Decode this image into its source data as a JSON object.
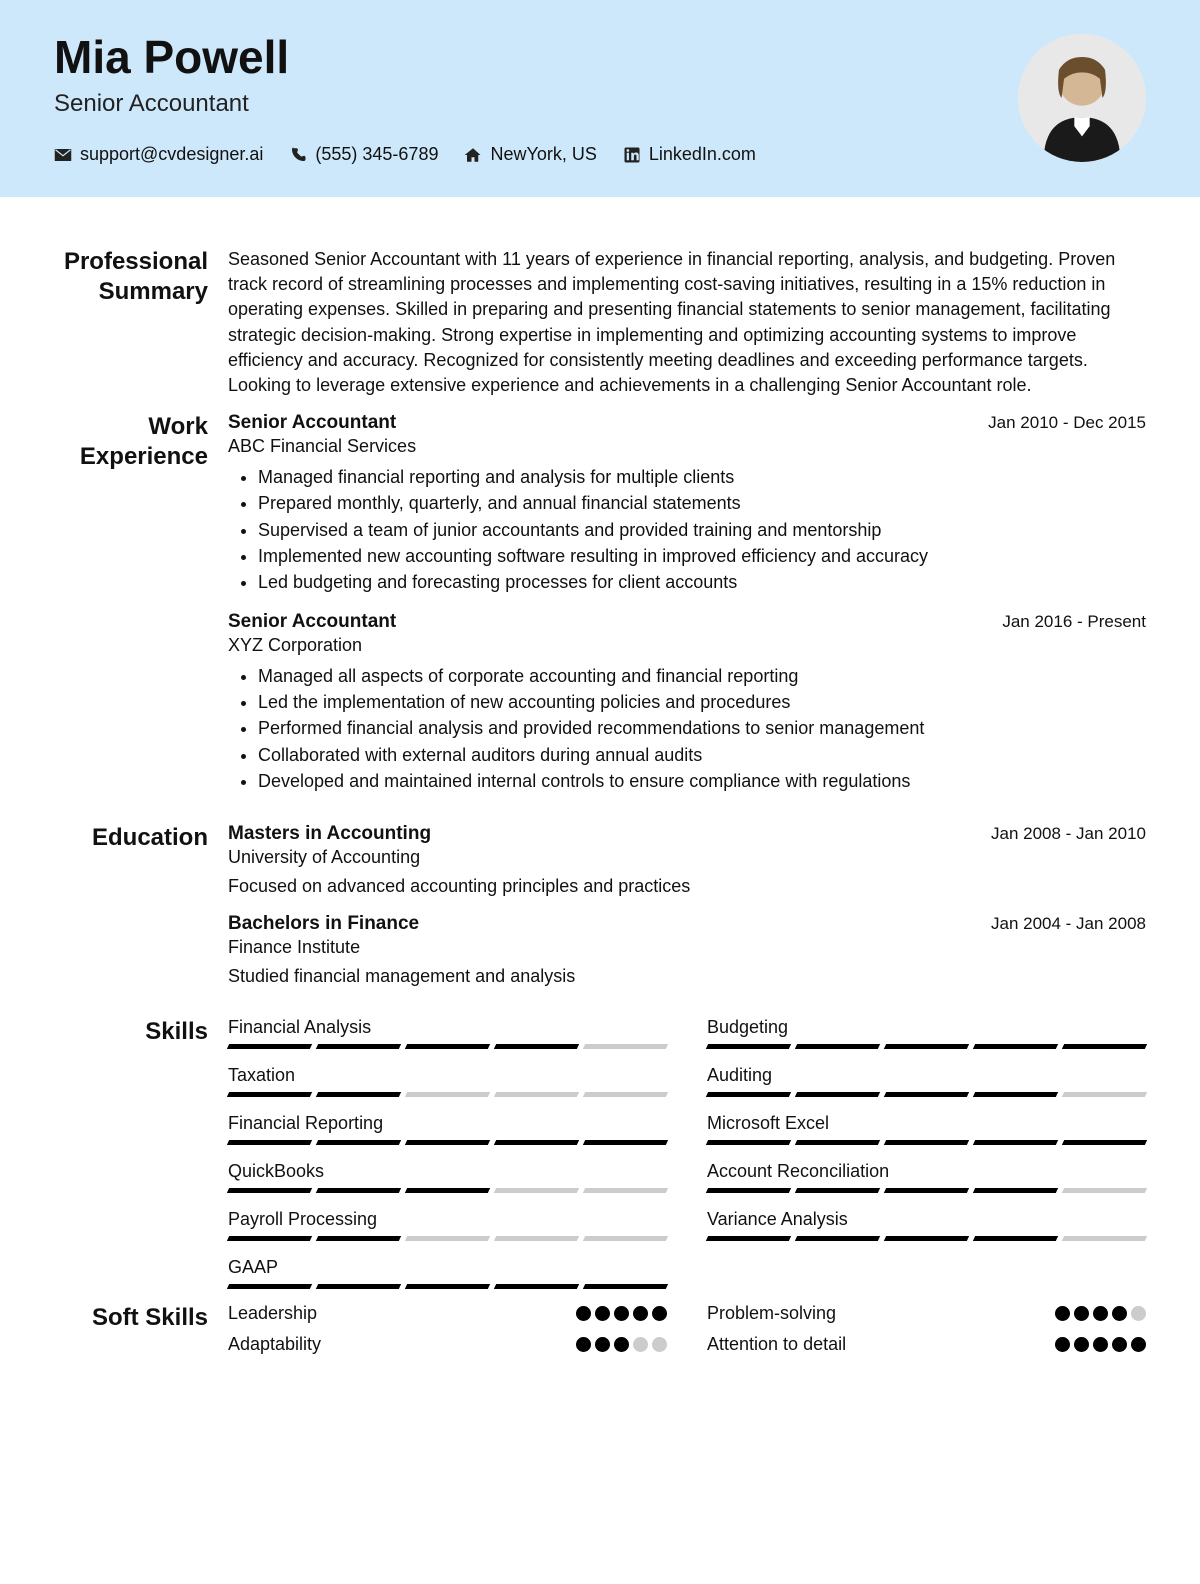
{
  "colors": {
    "header_bg": "#cee8fb",
    "text": "#111111",
    "skill_filled": "#000000",
    "skill_empty": "#cccccc",
    "dot_filled": "#000000",
    "dot_empty": "#cccccc"
  },
  "header": {
    "name": "Mia Powell",
    "title": "Senior Accountant",
    "contacts": [
      {
        "icon": "mail",
        "text": "support@cvdesigner.ai"
      },
      {
        "icon": "phone",
        "text": "(555) 345-6789"
      },
      {
        "icon": "home",
        "text": "NewYork, US"
      },
      {
        "icon": "linkedin",
        "text": "LinkedIn.com"
      }
    ]
  },
  "sections": {
    "summary": {
      "label": "Professional Summary"
    },
    "experience": {
      "label": "Work Experience"
    },
    "education": {
      "label": "Education"
    },
    "skills": {
      "label": "Skills"
    },
    "softskills": {
      "label": "Soft Skills"
    }
  },
  "summary_text": "Seasoned Senior Accountant with 11 years of experience in financial reporting, analysis, and budgeting. Proven track record of streamlining processes and implementing cost-saving initiatives, resulting in a 15% reduction in operating expenses. Skilled in preparing and presenting financial statements to senior management, facilitating strategic decision-making. Strong expertise in implementing and optimizing accounting systems to improve efficiency and accuracy. Recognized for consistently meeting deadlines and exceeding performance targets. Looking to leverage extensive experience and achievements in a challenging Senior Accountant role.",
  "experience": [
    {
      "title": "Senior Accountant",
      "company": "ABC Financial Services",
      "dates": "Jan 2010 - Dec 2015",
      "bullets": [
        "Managed financial reporting and analysis for multiple clients",
        "Prepared monthly, quarterly, and annual financial statements",
        "Supervised a team of junior accountants and provided training and mentorship",
        "Implemented new accounting software resulting in improved efficiency and accuracy",
        "Led budgeting and forecasting processes for client accounts"
      ]
    },
    {
      "title": "Senior Accountant",
      "company": "XYZ Corporation",
      "dates": "Jan 2016 - Present",
      "bullets": [
        "Managed all aspects of corporate accounting and financial reporting",
        "Led the implementation of new accounting policies and procedures",
        "Performed financial analysis and provided recommendations to senior management",
        "Collaborated with external auditors during annual audits",
        "Developed and maintained internal controls to ensure compliance with regulations"
      ]
    }
  ],
  "education": [
    {
      "degree": "Masters in Accounting",
      "school": "University of Accounting",
      "dates": "Jan 2008 - Jan 2010",
      "desc": "Focused on advanced accounting principles and practices"
    },
    {
      "degree": "Bachelors in Finance",
      "school": "Finance Institute",
      "dates": "Jan 2004 - Jan 2008",
      "desc": "Studied financial management and analysis"
    }
  ],
  "skills": [
    {
      "name": "Financial Analysis",
      "level": 4
    },
    {
      "name": "Budgeting",
      "level": 5
    },
    {
      "name": "Taxation",
      "level": 2
    },
    {
      "name": "Auditing",
      "level": 4
    },
    {
      "name": "Financial Reporting",
      "level": 5
    },
    {
      "name": "Microsoft Excel",
      "level": 5
    },
    {
      "name": "QuickBooks",
      "level": 3
    },
    {
      "name": "Account Reconciliation",
      "level": 4
    },
    {
      "name": "Payroll Processing",
      "level": 2
    },
    {
      "name": "Variance Analysis",
      "level": 4
    },
    {
      "name": "GAAP",
      "level": 5
    }
  ],
  "skill_segments": 5,
  "softskills": [
    {
      "name": "Leadership",
      "level": 5
    },
    {
      "name": "Problem-solving",
      "level": 4
    },
    {
      "name": "Adaptability",
      "level": 3
    },
    {
      "name": "Attention to detail",
      "level": 5
    }
  ],
  "soft_dots": 5
}
